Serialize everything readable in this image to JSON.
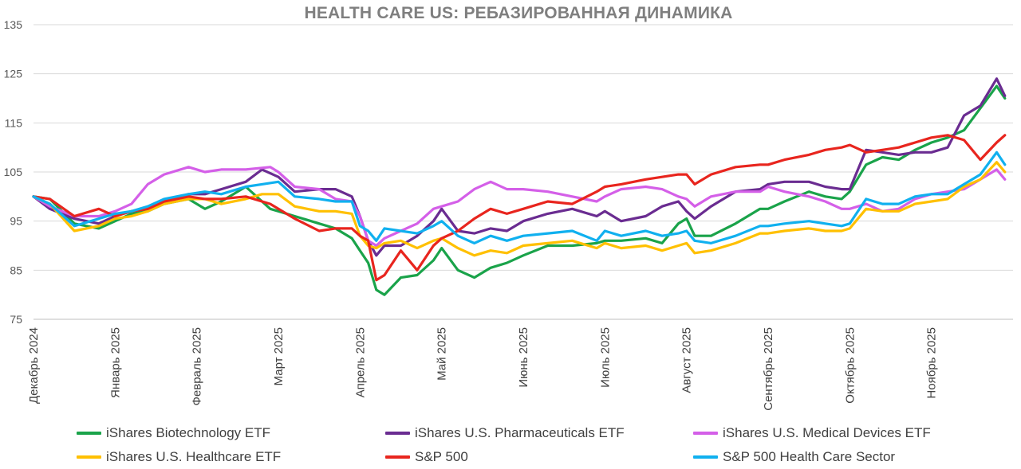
{
  "chart_data": {
    "type": "line",
    "title": "HEALTH CARE US: РЕБАЗИРОВАННАЯ ДИНАМИКА",
    "xlabel": "",
    "ylabel": "",
    "ylim": [
      75,
      135
    ],
    "yticks": [
      75,
      85,
      95,
      105,
      115,
      125,
      135
    ],
    "gridlines": true,
    "legend_position": "bottom",
    "x_range": [
      0,
      12
    ],
    "x_tick_positions": [
      0,
      1,
      2,
      3,
      4,
      5,
      6,
      7,
      8,
      9,
      10,
      11
    ],
    "x_tick_labels": [
      "Декабрь 2024",
      "Январь 2025",
      "Февраль 2025",
      "Март 2025",
      "Апрель 2025",
      "Май 2025",
      "Июнь 2025",
      "Июль 2025",
      "Август 2025",
      "Сентябрь 2025",
      "Октябрь 2025",
      "Ноябрь 2025"
    ],
    "x_unit": "months since start of December 2024",
    "series": [
      {
        "name": "iShares Biotechnology ETF",
        "color": "#1aa34a",
        "x": [
          0,
          0.2,
          0.5,
          0.8,
          1.0,
          1.2,
          1.4,
          1.6,
          1.9,
          2.1,
          2.3,
          2.6,
          2.9,
          3.0,
          3.2,
          3.5,
          3.7,
          3.9,
          4.0,
          4.1,
          4.2,
          4.3,
          4.5,
          4.7,
          4.9,
          5.0,
          5.2,
          5.4,
          5.6,
          5.8,
          6.0,
          6.3,
          6.6,
          6.9,
          7.0,
          7.2,
          7.5,
          7.7,
          7.9,
          8.0,
          8.1,
          8.3,
          8.6,
          8.9,
          9.0,
          9.2,
          9.5,
          9.7,
          9.9,
          10.0,
          10.2,
          10.4,
          10.6,
          10.8,
          11.0,
          11.2,
          11.4,
          11.6,
          11.8,
          11.9
        ],
        "values": [
          100,
          99.5,
          94.5,
          93.5,
          95,
          96.5,
          97,
          98.5,
          99.5,
          97.5,
          99,
          102,
          97.5,
          97,
          96,
          94.5,
          93.5,
          91.5,
          89,
          86.5,
          81,
          80,
          83.5,
          84,
          87,
          89.5,
          85,
          83.5,
          85.5,
          86.5,
          88,
          90,
          90,
          90.5,
          91,
          91,
          91.5,
          90.5,
          94.5,
          95.5,
          92,
          92,
          94.5,
          97.5,
          97.5,
          99,
          101,
          100,
          99.5,
          101,
          106.5,
          108,
          107.5,
          109.5,
          111,
          112,
          113.5,
          118,
          122.5,
          120
        ]
      },
      {
        "name": "iShares U.S. Pharmaceuticals ETF",
        "color": "#6a2c91",
        "x": [
          0,
          0.2,
          0.5,
          0.8,
          1.0,
          1.2,
          1.4,
          1.6,
          1.9,
          2.1,
          2.3,
          2.6,
          2.8,
          3.0,
          3.2,
          3.5,
          3.7,
          3.9,
          4.0,
          4.1,
          4.2,
          4.3,
          4.5,
          4.7,
          4.9,
          5.0,
          5.2,
          5.4,
          5.6,
          5.8,
          6.0,
          6.3,
          6.6,
          6.9,
          7.0,
          7.2,
          7.5,
          7.7,
          7.9,
          8.0,
          8.1,
          8.3,
          8.6,
          8.9,
          9.0,
          9.2,
          9.5,
          9.7,
          9.9,
          10.0,
          10.2,
          10.4,
          10.6,
          10.8,
          11.0,
          11.2,
          11.4,
          11.6,
          11.8,
          11.9
        ],
        "values": [
          100,
          97.5,
          95.5,
          94.5,
          96,
          97,
          97.5,
          99,
          100.5,
          100.5,
          101.5,
          103,
          105.5,
          104,
          101,
          101.5,
          101.5,
          100,
          96,
          91,
          88,
          90,
          90,
          92,
          95,
          97.5,
          93,
          92.5,
          93.5,
          93,
          95,
          96.5,
          97.5,
          96,
          97,
          95,
          96,
          98,
          99,
          97,
          95.5,
          98,
          101,
          101.5,
          102.5,
          103,
          103,
          102,
          101.5,
          101.5,
          109.5,
          109,
          108.5,
          109,
          109,
          110,
          116.5,
          118.5,
          124,
          120.5
        ]
      },
      {
        "name": "iShares U.S. Medical Devices ETF",
        "color": "#d45fe8",
        "x": [
          0,
          0.2,
          0.5,
          0.8,
          1.0,
          1.2,
          1.4,
          1.6,
          1.9,
          2.1,
          2.3,
          2.6,
          2.9,
          3.0,
          3.2,
          3.5,
          3.7,
          3.9,
          4.0,
          4.1,
          4.2,
          4.3,
          4.5,
          4.7,
          4.9,
          5.0,
          5.2,
          5.4,
          5.6,
          5.8,
          6.0,
          6.3,
          6.6,
          6.9,
          7.0,
          7.2,
          7.5,
          7.7,
          7.9,
          8.0,
          8.1,
          8.3,
          8.6,
          8.9,
          9.0,
          9.2,
          9.5,
          9.7,
          9.9,
          10.0,
          10.2,
          10.4,
          10.6,
          10.8,
          11.0,
          11.2,
          11.4,
          11.6,
          11.8,
          11.9
        ],
        "values": [
          100,
          98,
          96,
          96,
          97,
          98.5,
          102.5,
          104.5,
          106,
          105,
          105.5,
          105.5,
          106,
          105,
          102,
          101.5,
          99.5,
          99,
          96,
          91,
          90,
          91.5,
          93,
          94.5,
          97.5,
          98,
          99,
          101.5,
          103,
          101.5,
          101.5,
          101,
          100,
          99,
          100,
          101.5,
          102,
          101.5,
          100,
          99.5,
          98,
          100,
          101,
          101,
          102,
          101,
          100,
          99,
          97.5,
          97.5,
          98.5,
          97,
          97.5,
          99.5,
          100.5,
          101,
          101.5,
          103.5,
          105.5,
          103.5
        ]
      },
      {
        "name": "iShares U.S. Healthcare ETF",
        "color": "#ffc000",
        "x": [
          0,
          0.2,
          0.5,
          0.8,
          1.0,
          1.2,
          1.4,
          1.6,
          1.9,
          2.1,
          2.3,
          2.6,
          2.8,
          3.0,
          3.2,
          3.5,
          3.7,
          3.9,
          4.0,
          4.1,
          4.2,
          4.3,
          4.5,
          4.7,
          4.9,
          5.0,
          5.2,
          5.4,
          5.6,
          5.8,
          6.0,
          6.3,
          6.6,
          6.9,
          7.0,
          7.2,
          7.5,
          7.7,
          7.9,
          8.0,
          8.1,
          8.3,
          8.6,
          8.9,
          9.0,
          9.2,
          9.5,
          9.7,
          9.9,
          10.0,
          10.2,
          10.4,
          10.6,
          10.8,
          11.0,
          11.2,
          11.4,
          11.6,
          11.8,
          11.9
        ],
        "values": [
          100,
          98.5,
          93,
          94,
          95.5,
          96,
          97,
          98.5,
          99.5,
          99.5,
          98.5,
          99.5,
          100.5,
          100.5,
          98,
          97,
          97,
          96.5,
          92,
          90,
          89.5,
          90.5,
          91,
          89.5,
          91,
          91.5,
          89.5,
          88,
          89,
          88.5,
          90,
          90.5,
          91,
          89.5,
          90.5,
          89.5,
          90,
          89,
          90,
          90.5,
          88.5,
          89,
          90.5,
          92.5,
          92.5,
          93,
          93.5,
          93,
          93,
          93.5,
          97.5,
          97,
          97,
          98.5,
          99,
          99.5,
          102,
          103.5,
          107,
          105
        ]
      },
      {
        "name": "S&P 500",
        "color": "#e8251e",
        "x": [
          0,
          0.2,
          0.5,
          0.8,
          1.0,
          1.2,
          1.4,
          1.6,
          1.9,
          2.1,
          2.3,
          2.6,
          2.9,
          3.0,
          3.2,
          3.5,
          3.7,
          3.9,
          4.0,
          4.1,
          4.2,
          4.3,
          4.5,
          4.7,
          4.9,
          5.0,
          5.2,
          5.4,
          5.6,
          5.8,
          6.0,
          6.3,
          6.6,
          6.9,
          7.0,
          7.2,
          7.5,
          7.7,
          7.9,
          8.0,
          8.1,
          8.3,
          8.6,
          8.9,
          9.0,
          9.2,
          9.5,
          9.7,
          9.9,
          10.0,
          10.2,
          10.4,
          10.6,
          10.8,
          11.0,
          11.2,
          11.4,
          11.6,
          11.8,
          11.9
        ],
        "values": [
          100,
          99.5,
          96,
          97.5,
          96,
          97,
          97.5,
          99,
          100,
          99.5,
          99.5,
          100,
          98.5,
          97.5,
          95.5,
          93,
          93.5,
          93.5,
          92,
          91,
          83,
          84,
          89,
          85,
          90,
          91.5,
          93,
          95.5,
          97.5,
          96.5,
          97.5,
          99,
          98.5,
          101,
          102,
          102.5,
          103.5,
          104,
          104.5,
          104.5,
          102.5,
          104.5,
          106,
          106.5,
          106.5,
          107.5,
          108.5,
          109.5,
          110,
          110.5,
          109,
          109.5,
          110,
          111,
          112,
          112.5,
          111.5,
          107.5,
          111,
          112.5
        ]
      },
      {
        "name": "S&P 500 Health Care Sector",
        "color": "#10b0ef",
        "x": [
          0,
          0.2,
          0.5,
          0.8,
          1.0,
          1.2,
          1.4,
          1.6,
          1.9,
          2.1,
          2.3,
          2.6,
          2.8,
          3.0,
          3.2,
          3.5,
          3.7,
          3.9,
          4.0,
          4.1,
          4.2,
          4.3,
          4.5,
          4.7,
          4.9,
          5.0,
          5.2,
          5.4,
          5.6,
          5.8,
          6.0,
          6.3,
          6.6,
          6.9,
          7.0,
          7.2,
          7.5,
          7.7,
          7.9,
          8.0,
          8.1,
          8.3,
          8.6,
          8.9,
          9.0,
          9.2,
          9.5,
          9.7,
          9.9,
          10.0,
          10.2,
          10.4,
          10.6,
          10.8,
          11.0,
          11.2,
          11.4,
          11.6,
          11.8,
          11.9
        ],
        "values": [
          100,
          98.5,
          94,
          95.5,
          96.5,
          97,
          98,
          99.5,
          100.5,
          101,
          100.5,
          102,
          102.5,
          103,
          100,
          99.5,
          99,
          99,
          94,
          93,
          91,
          93.5,
          93,
          92.5,
          94,
          95,
          92,
          90.5,
          92,
          91,
          92,
          92.5,
          93,
          91,
          93,
          92,
          93,
          92,
          92.5,
          93,
          91,
          90.5,
          92,
          94,
          94,
          94.5,
          95,
          94.5,
          94,
          94.5,
          99.5,
          98.5,
          98.5,
          100,
          100.5,
          100.5,
          102.5,
          104.5,
          109,
          106.5
        ]
      }
    ]
  }
}
